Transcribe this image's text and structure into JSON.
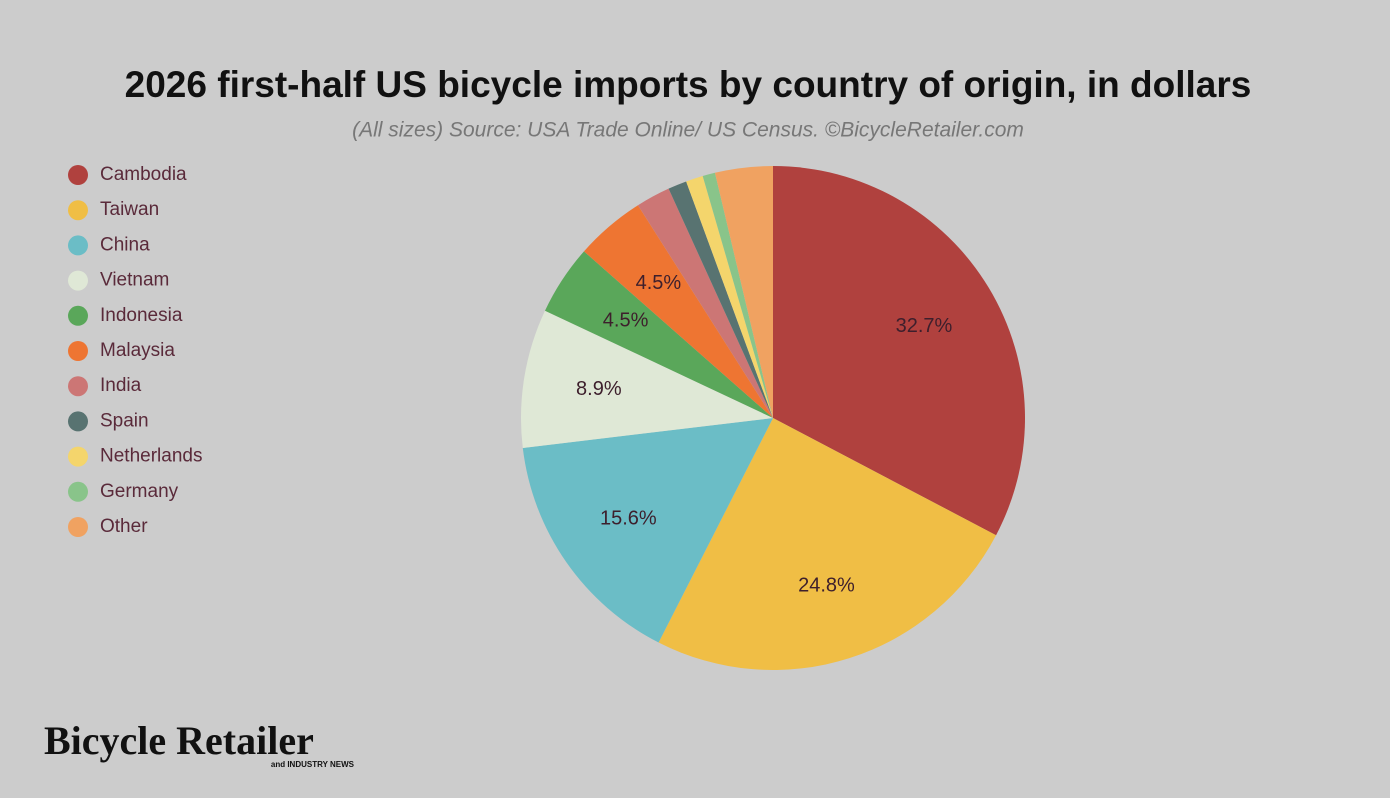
{
  "chart_data": {
    "type": "pie",
    "title": "2026 first-half US bicycle imports by country of origin, in dollars",
    "subtitle": "(All sizes) Source: USA Trade Online/ US Census. ©BicycleRetailer.com",
    "categories": [
      "Cambodia",
      "Taiwan",
      "China",
      "Vietnam",
      "Indonesia",
      "Malaysia",
      "India",
      "Spain",
      "Netherlands",
      "Germany",
      "Other"
    ],
    "values": [
      32.7,
      24.8,
      15.6,
      8.9,
      4.5,
      4.5,
      2.2,
      1.2,
      1.1,
      0.8,
      3.7
    ],
    "value_labels": [
      "32.7%",
      "24.8%",
      "15.6%",
      "8.9%",
      "4.5%",
      "4.5%",
      null,
      null,
      null,
      null,
      null
    ],
    "colors": [
      "#b0413e",
      "#f0be45",
      "#6bbdc6",
      "#dfe8d6",
      "#5aa75a",
      "#ee7532",
      "#cc7675",
      "#587371",
      "#f4d56c",
      "#89c48a",
      "#f0a261"
    ],
    "legend": "left"
  },
  "logo": {
    "name": "Bicycle Retailer",
    "tagline": "and INDUSTRY NEWS"
  }
}
